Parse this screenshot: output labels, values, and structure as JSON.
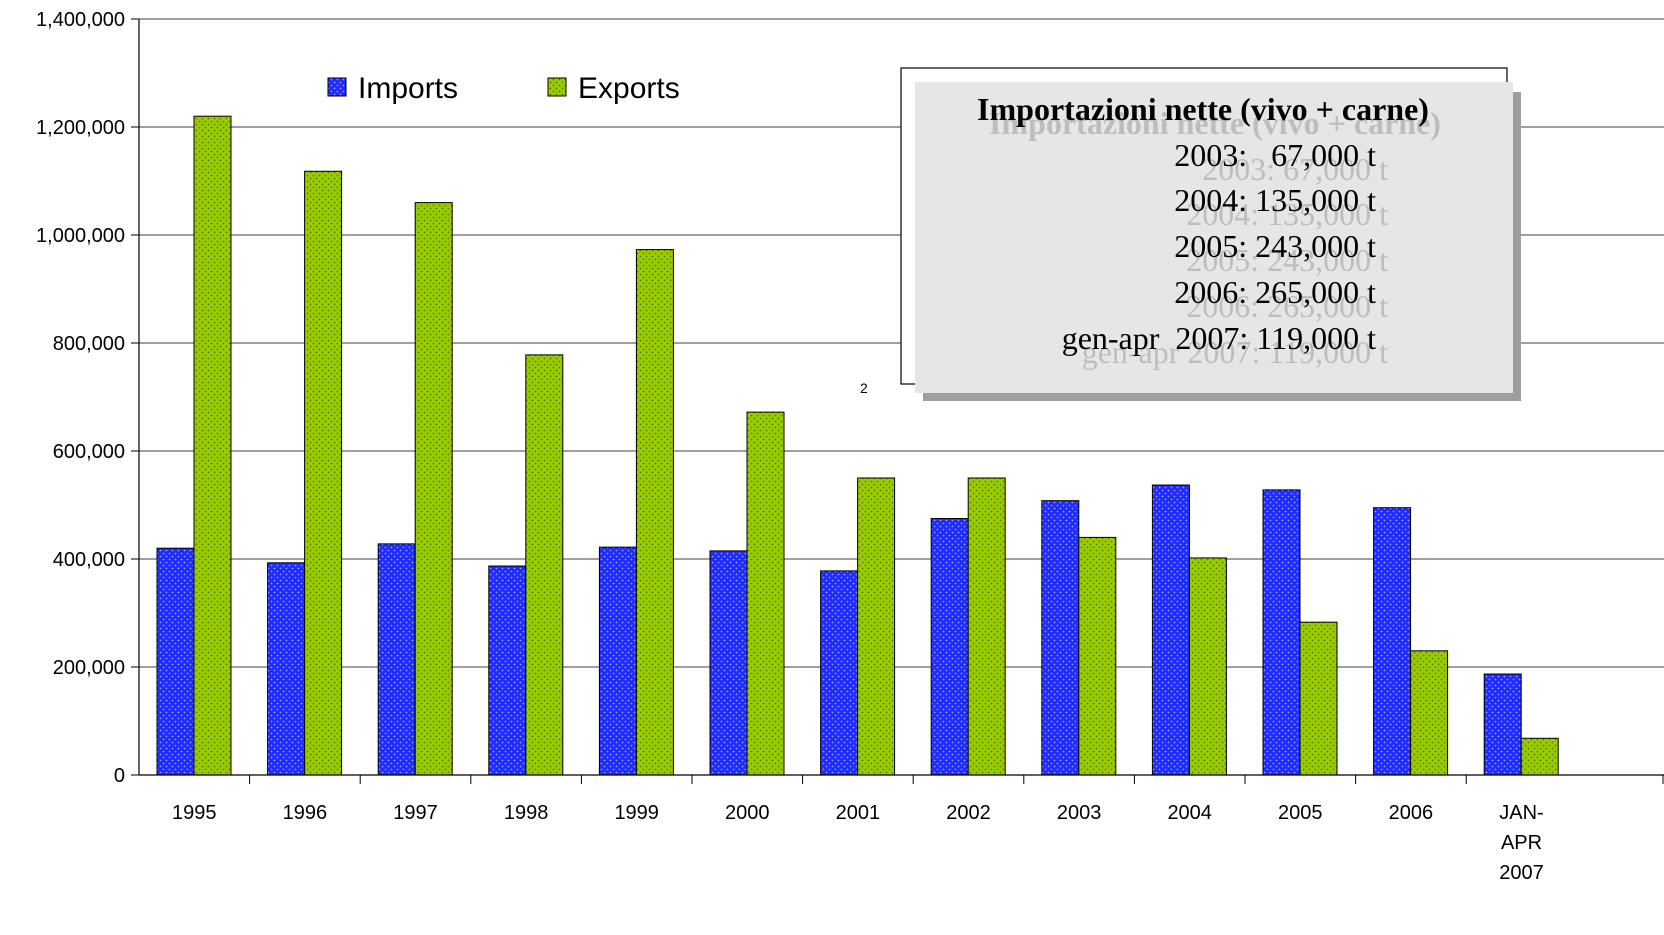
{
  "chart_data": {
    "type": "bar",
    "categories": [
      "1995",
      "1996",
      "1997",
      "1998",
      "1999",
      "2000",
      "2001",
      "2002",
      "2003",
      "2004",
      "2005",
      "2006",
      "JAN-APR 2007"
    ],
    "category_labels": [
      [
        "1995"
      ],
      [
        "1996"
      ],
      [
        "1997"
      ],
      [
        "1998"
      ],
      [
        "1999"
      ],
      [
        "2000"
      ],
      [
        "2001"
      ],
      [
        "2002"
      ],
      [
        "2003"
      ],
      [
        "2004"
      ],
      [
        "2005"
      ],
      [
        "2006"
      ],
      [
        "JAN-",
        "APR",
        "2007"
      ]
    ],
    "series": [
      {
        "name": "Imports",
        "color": "#1f2bff",
        "values": [
          420000,
          393000,
          428000,
          387000,
          422000,
          415000,
          378000,
          475000,
          508000,
          537000,
          528000,
          495000,
          187000
        ]
      },
      {
        "name": "Exports",
        "color": "#99cc00",
        "values": [
          1220000,
          1118000,
          1060000,
          778000,
          973000,
          672000,
          550000,
          550000,
          440000,
          402000,
          283000,
          230000,
          68000
        ]
      }
    ],
    "ylim": [
      0,
      1400000
    ],
    "yticks": [
      0,
      200000,
      400000,
      600000,
      800000,
      1000000,
      1200000,
      1400000
    ],
    "ytick_labels": [
      "0",
      "200,000",
      "400,000",
      "600,000",
      "800,000",
      "1,000,000",
      "1,200,000",
      "1,400,000"
    ],
    "grid": true,
    "legend": "top-left",
    "title": "",
    "xlabel": "",
    "ylabel": ""
  },
  "annotation_box": {
    "title": "Importazioni nette (vivo + carne)",
    "lines": [
      "2003:   67,000 t",
      "2004: 135,000 t",
      "2005: 243,000 t",
      "2006: 265,000 t",
      "gen-apr  2007: 119,000 t"
    ]
  },
  "stray_mark": "2"
}
